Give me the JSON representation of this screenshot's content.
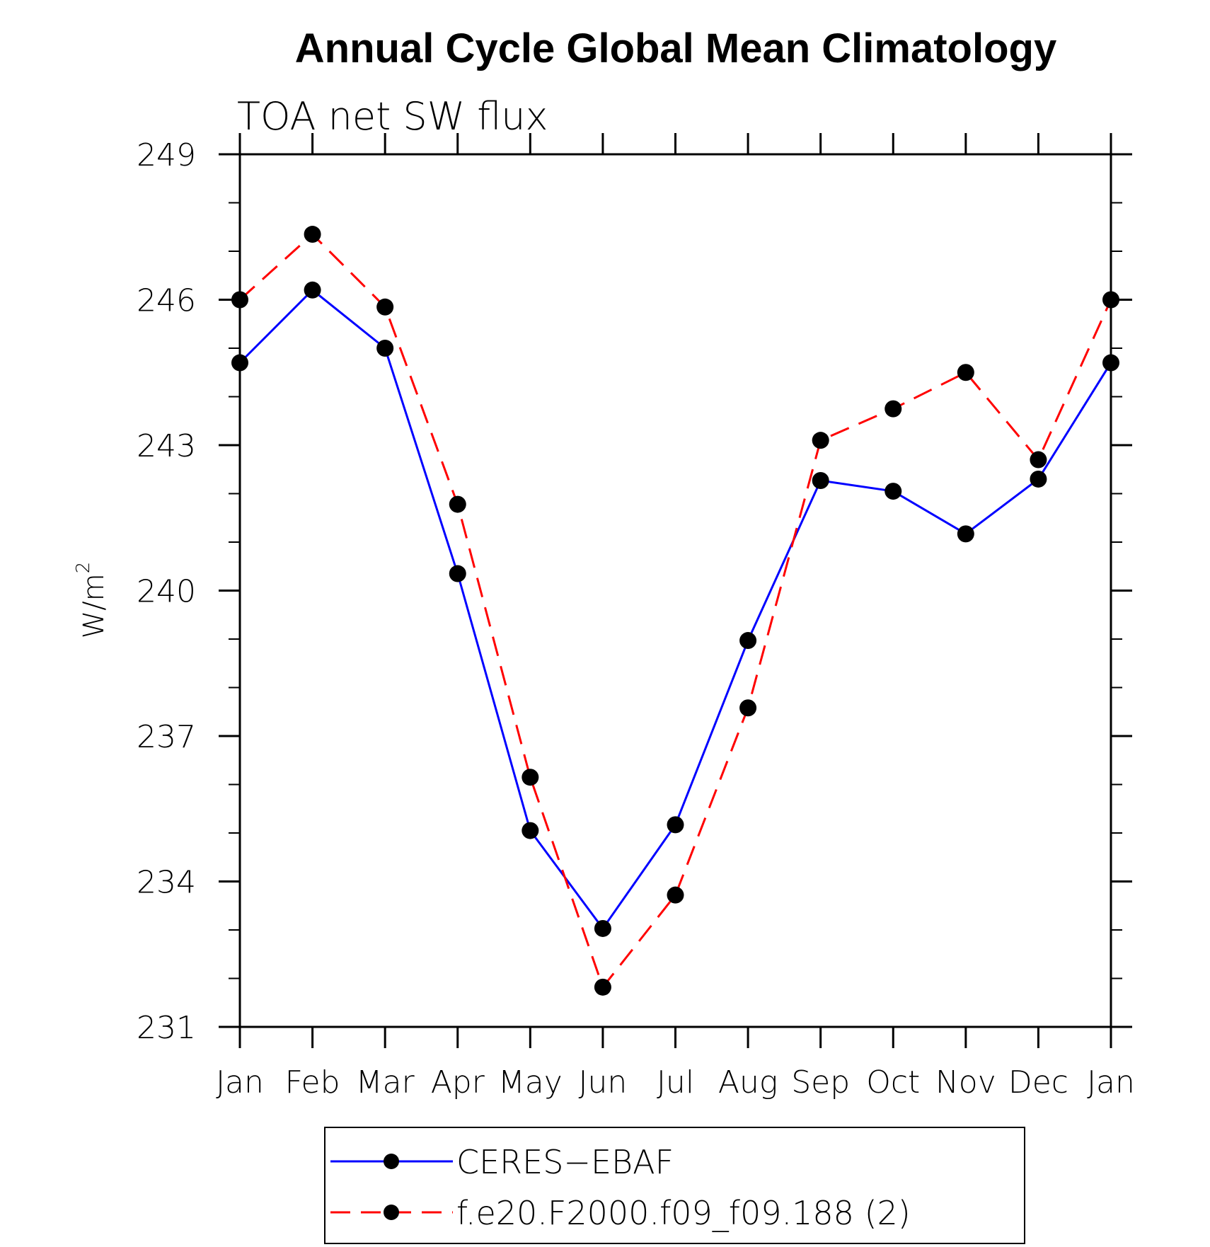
{
  "chart_data": {
    "type": "line",
    "title": "Annual Cycle Global Mean Climatology",
    "subtitle": "TOA net SW flux",
    "xlabel": "",
    "ylabel": "W/m",
    "ylabel_sup": "2",
    "categories": [
      "Jan",
      "Feb",
      "Mar",
      "Apr",
      "May",
      "Jun",
      "Jul",
      "Aug",
      "Sep",
      "Oct",
      "Nov",
      "Dec",
      "Jan"
    ],
    "yticks": [
      249,
      246,
      243,
      240,
      237,
      234,
      231
    ],
    "ylim": [
      231,
      249
    ],
    "legend_position": "bottom",
    "series": [
      {
        "name": "CERES−EBAF",
        "color": "#0000ff",
        "dash": "solid",
        "marker": "filled-circle",
        "values": [
          244.7,
          246.2,
          245.0,
          240.35,
          235.05,
          233.03,
          235.17,
          238.97,
          242.27,
          242.05,
          241.17,
          242.3,
          244.7
        ]
      },
      {
        "name": "f.e20.F2000.f09_f09.188 (2)",
        "color": "#ff0000",
        "dash": "dashed",
        "marker": "filled-circle",
        "values": [
          246.0,
          247.35,
          245.85,
          241.78,
          236.15,
          231.82,
          233.72,
          237.58,
          243.1,
          243.75,
          244.5,
          242.7,
          246.0
        ]
      }
    ]
  }
}
